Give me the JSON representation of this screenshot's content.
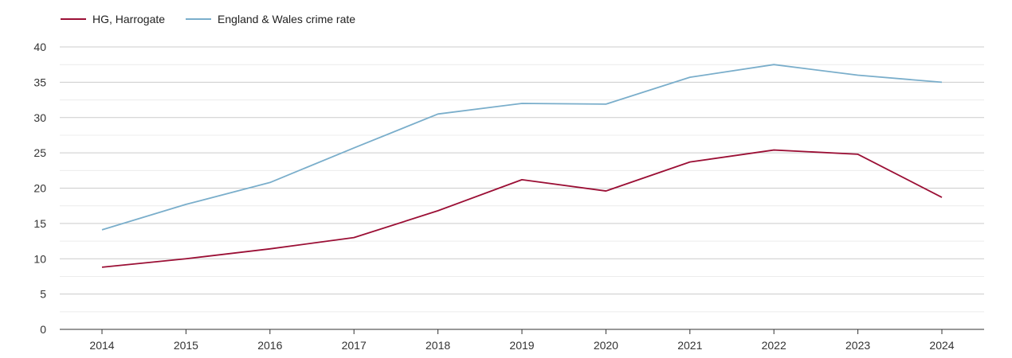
{
  "chart_data": {
    "type": "line",
    "title": "",
    "xlabel": "",
    "ylabel": "",
    "x": [
      "2014",
      "2015",
      "2016",
      "2017",
      "2018",
      "2019",
      "2020",
      "2021",
      "2022",
      "2023",
      "2024"
    ],
    "ylim": [
      0,
      40
    ],
    "yticks": [
      "0",
      "5",
      "10",
      "15",
      "20",
      "25",
      "30",
      "35",
      "40"
    ],
    "grid": true,
    "legend_position": "top-left",
    "series": [
      {
        "name": "HG, Harrogate",
        "color": "#9b0f35",
        "values": [
          8.8,
          10.0,
          11.4,
          13.0,
          16.8,
          21.2,
          19.6,
          23.7,
          25.4,
          24.8,
          18.7
        ]
      },
      {
        "name": "England & Wales crime rate",
        "color": "#7aaecb",
        "values": [
          14.1,
          17.7,
          20.8,
          25.7,
          30.5,
          32.0,
          31.9,
          35.7,
          37.5,
          36.0,
          35.0
        ]
      }
    ]
  }
}
